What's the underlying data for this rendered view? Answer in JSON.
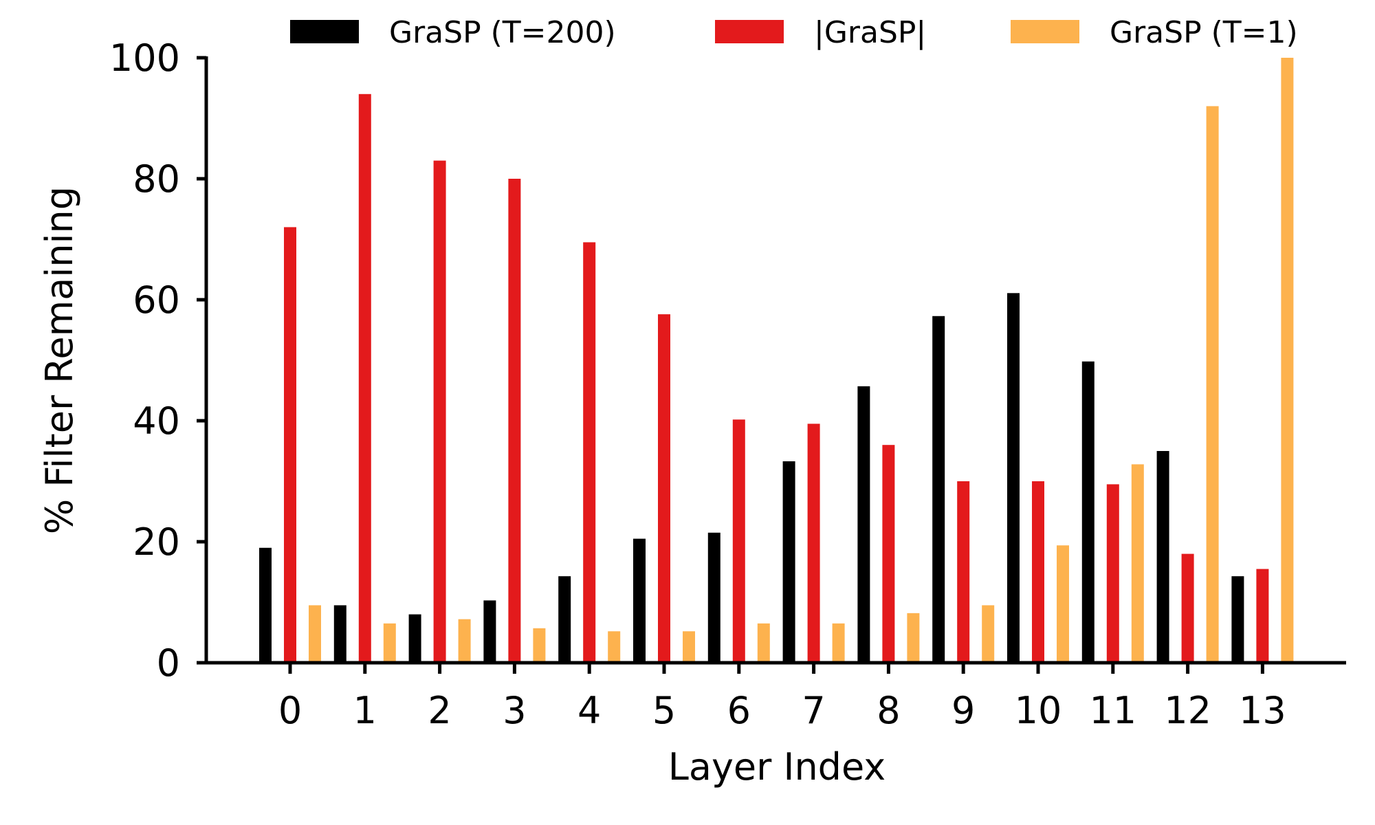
{
  "chart_data": {
    "type": "bar",
    "xlabel": "Layer Index",
    "ylabel": "% Filter Remaining",
    "ylim": [
      0,
      100
    ],
    "yticks": [
      0,
      20,
      40,
      60,
      80,
      100
    ],
    "grid": false,
    "legend_position": "top",
    "categories": [
      "0",
      "1",
      "2",
      "3",
      "4",
      "5",
      "6",
      "7",
      "8",
      "9",
      "10",
      "11",
      "12",
      "13"
    ],
    "series": [
      {
        "name": "GraSP (T=200)",
        "color": "#000000",
        "values": [
          19,
          9.5,
          8,
          10.3,
          14.3,
          20.5,
          21.5,
          33.3,
          45.7,
          57.3,
          61.1,
          49.8,
          35,
          14.3
        ]
      },
      {
        "name": "|GraSP|",
        "color": "#e31a1c",
        "values": [
          72,
          94,
          83,
          80,
          69.5,
          57.6,
          40.2,
          39.5,
          36,
          30,
          30,
          29.5,
          18,
          15.5
        ]
      },
      {
        "name": "GraSP (T=1)",
        "color": "#fdb24e",
        "values": [
          9.5,
          6.5,
          7.2,
          5.7,
          5.2,
          5.2,
          6.5,
          6.5,
          8.2,
          9.5,
          19.4,
          32.8,
          92,
          100
        ]
      }
    ]
  }
}
